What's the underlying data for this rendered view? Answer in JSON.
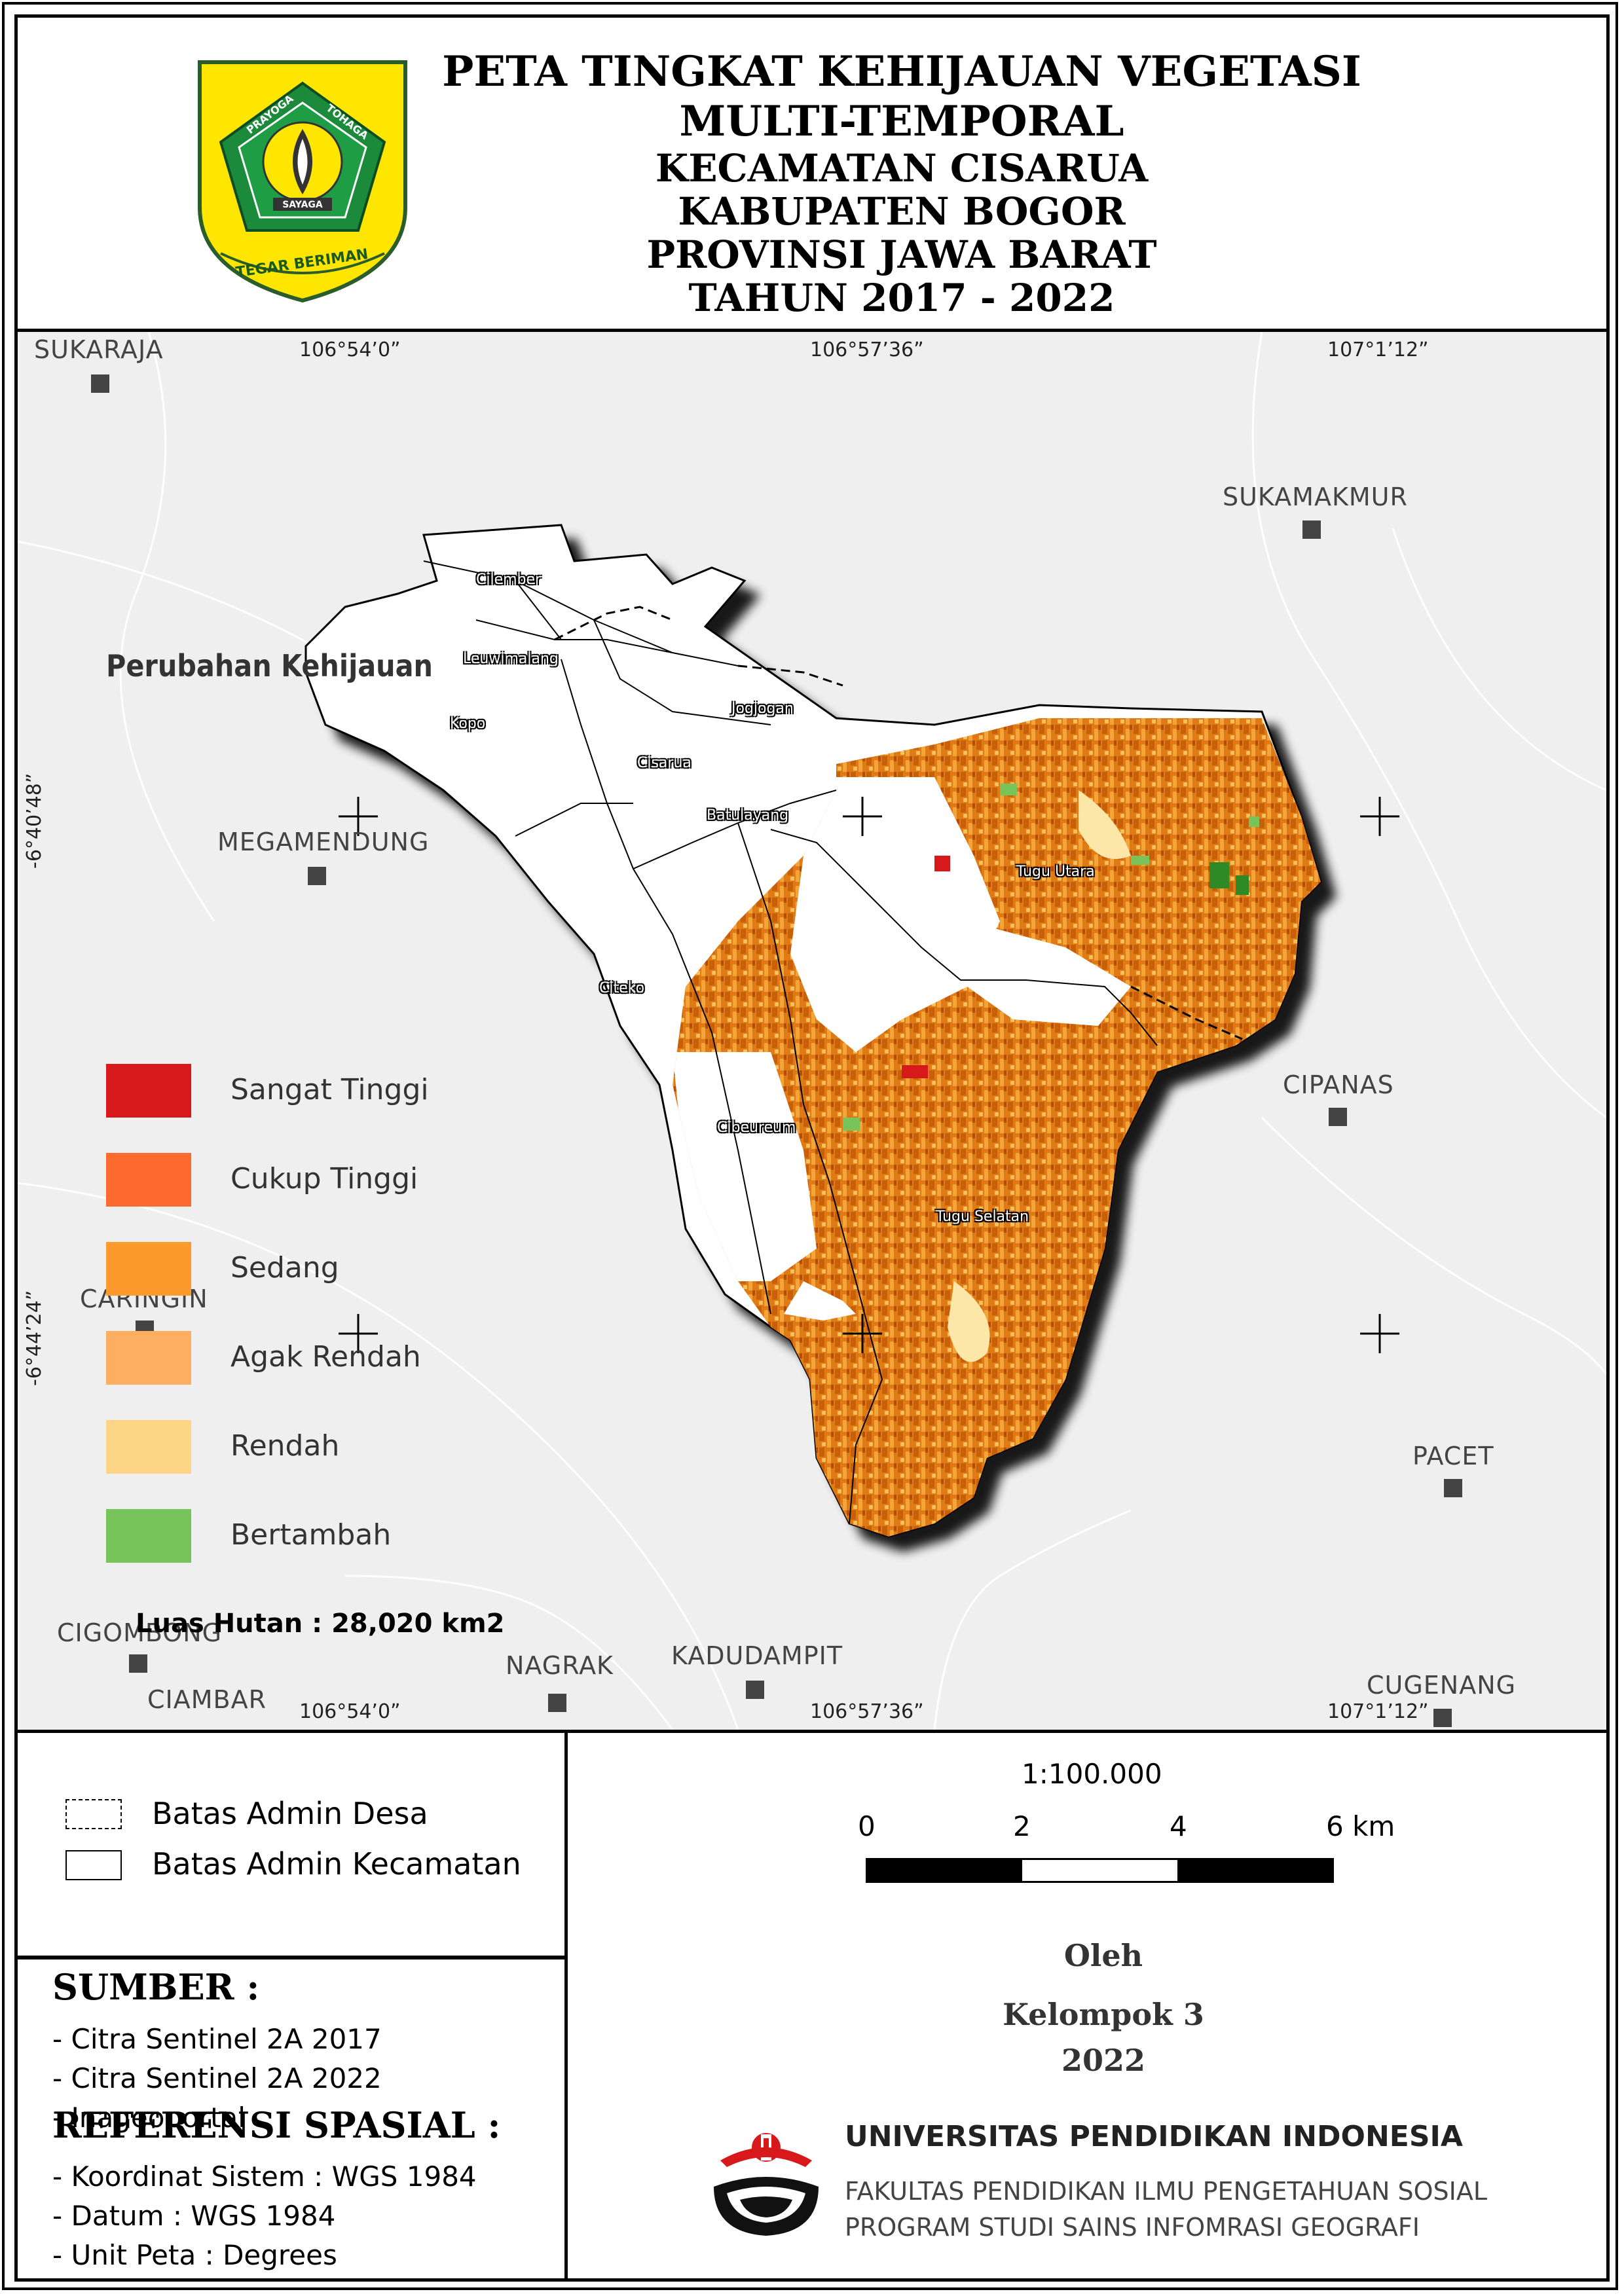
{
  "header": {
    "title_line1": "PETA TINGKAT KEHIJAUAN VEGETASI",
    "title_line2": "MULTI-TEMPORAL",
    "title_line3": "KECAMATAN CISARUA",
    "title_line4": "KABUPATEN BOGOR",
    "title_line5": "PROVINSI JAWA BARAT",
    "title_line6": "TAHUN 2017 - 2022",
    "logo": {
      "icon": "bogor-regency-emblem",
      "text_top_left": "PRAYOGA",
      "text_top_right": "TOHAGA",
      "text_center": "SAYAGA",
      "motto": "TEGAR BERIMAN"
    }
  },
  "map": {
    "coords": {
      "top_left": "106°54’0”",
      "top_mid": "106°57’36”",
      "top_right": "107°1’12”",
      "bottom_left": "106°54’0”",
      "bottom_mid": "106°57’36”",
      "bottom_right": "107°1’12”",
      "left_upper": "-6°40’48”",
      "left_lower": "-6°44’24”"
    },
    "places": [
      "SUKARAJA",
      "SUKAMAKMUR",
      "MEGAMENDUNG",
      "CIPANAS",
      "CARINGIN",
      "PACET",
      "CIGOMBONG",
      "NAGRAK",
      "KADUDAMPIT",
      "CIAMBAR",
      "CUGENANG"
    ],
    "villages": [
      "Cilember",
      "Leuwimalang",
      "Kopo",
      "Jogjogan",
      "Cisarua",
      "Batulayang",
      "Tugu Utara",
      "Citeko",
      "Cibeureum",
      "Tugu Selatan"
    ],
    "legend": {
      "title": "Perubahan Kehijauan",
      "items": [
        {
          "label": "Sangat Tinggi",
          "color": "#d7191c"
        },
        {
          "label": "Cukup Tinggi",
          "color": "#fd6a2e"
        },
        {
          "label": "Sedang",
          "color": "#fd9a2d"
        },
        {
          "label": "Agak Rendah",
          "color": "#fdae61"
        },
        {
          "label": "Rendah",
          "color": "#fdd585"
        },
        {
          "label": "Bertambah",
          "color": "#78c35a"
        }
      ]
    },
    "luas_hutan": "Luas Hutan : 28,020 km2"
  },
  "boundary_legend": {
    "desa": "Batas Admin Desa",
    "kecamatan": "Batas Admin Kecamatan"
  },
  "sumber": {
    "title": "SUMBER :",
    "items": [
      "- Citra Sentinel 2A 2017",
      "- Citra Sentinel 2A 2022",
      "- Inageoportal"
    ]
  },
  "referensi": {
    "title": "REFERENSI SPASIAL :",
    "items": [
      "- Koordinat Sistem : WGS 1984",
      "- Datum : WGS 1984",
      "- Unit Peta : Degrees"
    ]
  },
  "scale": {
    "ratio": "1:100.000",
    "ticks": [
      "0",
      "2",
      "4",
      "6 km"
    ]
  },
  "credits": {
    "by": "Oleh",
    "group": "Kelompok 3",
    "year": "2022",
    "university": "UNIVERSITAS PENDIDIKAN INDONESIA",
    "faculty": "FAKULTAS PENDIDIKAN ILMU PENGETAHUAN SOSIAL",
    "program": "PROGRAM STUDI SAINS INFOMRASI GEOGRAFI",
    "logo_icon": "upi-logo"
  }
}
